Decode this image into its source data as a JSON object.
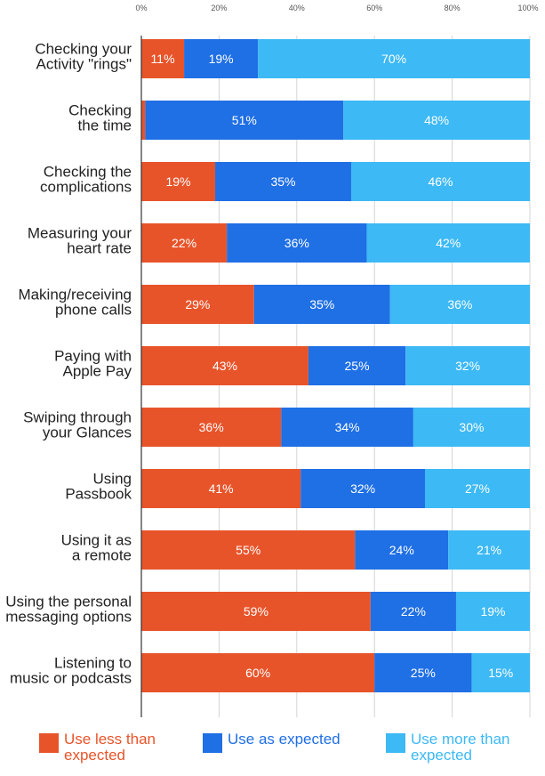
{
  "chart_data": {
    "type": "bar",
    "orientation": "horizontal",
    "stacked": true,
    "xlim": [
      0,
      100
    ],
    "x_ticks": [
      "0%",
      "20%",
      "40%",
      "60%",
      "80%",
      "100%"
    ],
    "grid": true,
    "categories": [
      "Checking your\nActivity \"rings\"",
      "Checking\nthe time",
      "Checking the\ncomplications",
      "Measuring your\nheart rate",
      "Making/receiving\nphone calls",
      "Paying with\nApple Pay",
      "Swiping through\nyour Glances",
      "Using\nPassbook",
      "Using it as\na remote",
      "Using the personal\nmessaging options",
      "Listening to\nmusic or podcasts"
    ],
    "series": [
      {
        "name": "Use less than\nexpected",
        "color": "#e8542a",
        "values": [
          11,
          1,
          19,
          22,
          29,
          43,
          36,
          41,
          55,
          59,
          60
        ],
        "labels": [
          "11%",
          "",
          "19%",
          "22%",
          "29%",
          "43%",
          "36%",
          "41%",
          "55%",
          "59%",
          "60%"
        ]
      },
      {
        "name": "Use as expected",
        "color": "#1f6fe5",
        "values": [
          19,
          51,
          35,
          36,
          35,
          25,
          34,
          32,
          24,
          22,
          25
        ],
        "labels": [
          "19%",
          "51%",
          "35%",
          "36%",
          "35%",
          "25%",
          "34%",
          "32%",
          "24%",
          "22%",
          "25%"
        ]
      },
      {
        "name": "Use more than\nexpected",
        "color": "#3db9f5",
        "values": [
          70,
          48,
          46,
          42,
          36,
          32,
          30,
          27,
          21,
          19,
          15
        ],
        "labels": [
          "70%",
          "48%",
          "46%",
          "42%",
          "36%",
          "32%",
          "30%",
          "27%",
          "21%",
          "19%",
          "15%"
        ]
      }
    ],
    "legend_position": "bottom",
    "title": "",
    "xlabel": "",
    "ylabel": ""
  }
}
